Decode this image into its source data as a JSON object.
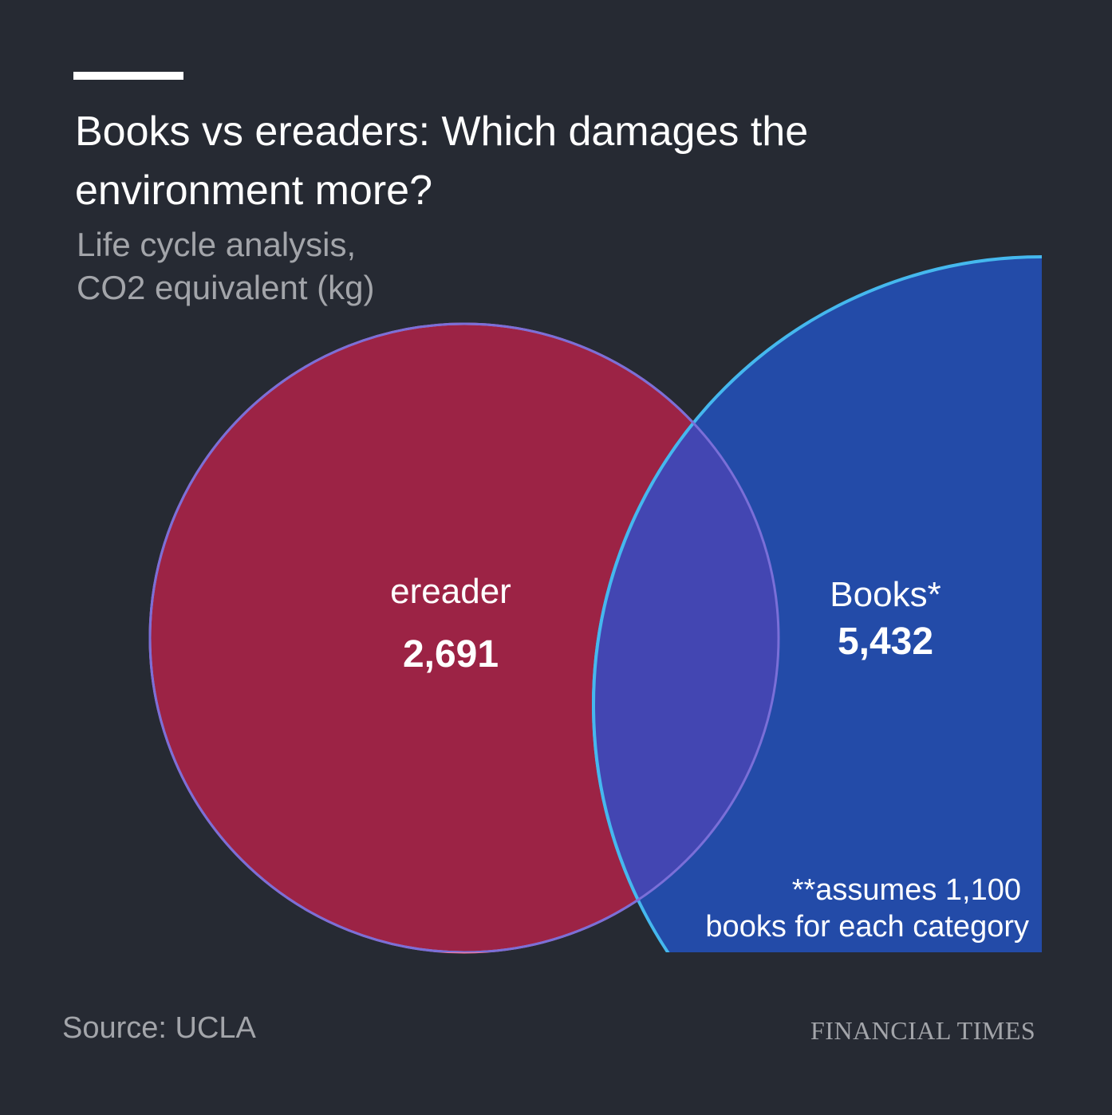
{
  "header": {
    "title": "Books vs ereaders: Which damages the environment more?",
    "subtitle_line1": "Life cycle analysis,",
    "subtitle_line2": "CO2 equivalent (kg)"
  },
  "footer": {
    "source": "Source: UCLA",
    "brand": "FINANCIAL TIMES"
  },
  "colors": {
    "background": "#262a33",
    "ereader_fill": "#9c2345",
    "ereader_stroke": "#f07aa5",
    "books_fill": "#234ba8",
    "books_stroke": "#45b8ee",
    "overlap_fill": "#4346b2"
  },
  "chart_data": {
    "type": "venn",
    "title": "Books vs ereaders: Which damages the environment more?",
    "subtitle": "Life cycle analysis, CO2 equivalent (kg)",
    "unit": "kg CO2 equivalent",
    "sets": [
      {
        "name": "ereader",
        "label": "ereader",
        "value": 2691,
        "value_label": "2,691"
      },
      {
        "name": "books",
        "label": "Books*",
        "value": 5432,
        "value_label": "5,432"
      }
    ],
    "note": "**assumes 1,100 books for each category",
    "note_lines": [
      "**assumes 1,100",
      "books for each category"
    ],
    "source": "Source: UCLA"
  }
}
